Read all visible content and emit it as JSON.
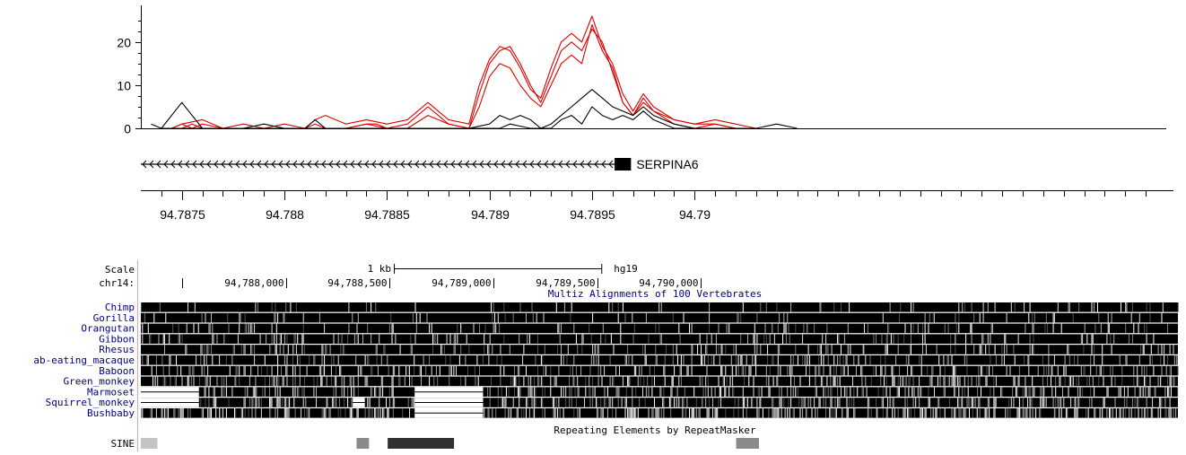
{
  "colors": {
    "upper_series": "#e00000",
    "lower_series": "#000000",
    "axis": "#000000",
    "gene": "#000000",
    "track_title": "#000080",
    "species_label": "#000080",
    "scale_label": "#000000",
    "track_divider": "#f4a0a0",
    "repeat_light": "#c4c4c4",
    "repeat_mid": "#8a8a8a",
    "repeat_dark": "#303030"
  },
  "chart_data": {
    "type": "line",
    "ylim": [
      0,
      26
    ],
    "yticks": [
      0,
      10,
      20
    ],
    "xlim": [
      94.7873,
      94.7923
    ],
    "xticks": [
      {
        "value": 94.7875,
        "label": "94.7875"
      },
      {
        "value": 94.788,
        "label": "94.788"
      },
      {
        "value": 94.7885,
        "label": "94.7885"
      },
      {
        "value": 94.789,
        "label": "94.789"
      },
      {
        "value": 94.7895,
        "label": "94.7895"
      },
      {
        "value": 94.79,
        "label": "94.79"
      }
    ],
    "series": [
      {
        "color": "#e00000",
        "points": [
          [
            94.78745,
            0
          ],
          [
            94.7875,
            1
          ],
          [
            94.78755,
            0
          ],
          [
            94.7876,
            1
          ],
          [
            94.7877,
            0
          ],
          [
            94.7878,
            0
          ],
          [
            94.7879,
            0
          ],
          [
            94.788,
            0
          ],
          [
            94.7881,
            0
          ],
          [
            94.78815,
            1
          ],
          [
            94.7882,
            0
          ],
          [
            94.7883,
            0
          ],
          [
            94.7884,
            1
          ],
          [
            94.78845,
            1
          ],
          [
            94.7885,
            0
          ],
          [
            94.7886,
            0
          ],
          [
            94.7887,
            3
          ],
          [
            94.78875,
            2
          ],
          [
            94.7888,
            1
          ],
          [
            94.7889,
            0
          ],
          [
            94.78895,
            5
          ],
          [
            94.789,
            12
          ],
          [
            94.78905,
            15
          ],
          [
            94.7891,
            14
          ],
          [
            94.78915,
            10
          ],
          [
            94.7892,
            7
          ],
          [
            94.78925,
            5
          ],
          [
            94.7893,
            10
          ],
          [
            94.78935,
            15
          ],
          [
            94.7894,
            17
          ],
          [
            94.78945,
            15
          ],
          [
            94.7895,
            24
          ],
          [
            94.78955,
            18
          ],
          [
            94.7896,
            14
          ],
          [
            94.78965,
            6
          ],
          [
            94.7897,
            3
          ],
          [
            94.78975,
            6
          ],
          [
            94.7898,
            4
          ],
          [
            94.7899,
            1
          ],
          [
            94.79,
            0
          ],
          [
            94.7901,
            1
          ],
          [
            94.7902,
            0
          ],
          [
            94.7903,
            0
          ]
        ]
      },
      {
        "color": "#e00000",
        "points": [
          [
            94.78745,
            0
          ],
          [
            94.7875,
            0
          ],
          [
            94.78755,
            1
          ],
          [
            94.7876,
            0
          ],
          [
            94.7877,
            0
          ],
          [
            94.7878,
            0
          ],
          [
            94.7879,
            0
          ],
          [
            94.788,
            0
          ],
          [
            94.7881,
            0
          ],
          [
            94.7882,
            0
          ],
          [
            94.7883,
            0
          ],
          [
            94.7884,
            1
          ],
          [
            94.7885,
            0
          ],
          [
            94.7886,
            1
          ],
          [
            94.7887,
            5
          ],
          [
            94.78875,
            3
          ],
          [
            94.7888,
            1
          ],
          [
            94.7889,
            0
          ],
          [
            94.78895,
            8
          ],
          [
            94.789,
            15
          ],
          [
            94.78905,
            18
          ],
          [
            94.7891,
            19
          ],
          [
            94.78915,
            15
          ],
          [
            94.7892,
            10
          ],
          [
            94.78925,
            6
          ],
          [
            94.7893,
            12
          ],
          [
            94.78935,
            18
          ],
          [
            94.7894,
            20
          ],
          [
            94.78945,
            18
          ],
          [
            94.7895,
            23
          ],
          [
            94.78955,
            20
          ],
          [
            94.7896,
            13
          ],
          [
            94.78965,
            6
          ],
          [
            94.7897,
            3
          ],
          [
            94.78975,
            7
          ],
          [
            94.7898,
            4
          ],
          [
            94.7899,
            2
          ],
          [
            94.79,
            1
          ],
          [
            94.7901,
            1
          ],
          [
            94.7902,
            0
          ],
          [
            94.7903,
            0
          ]
        ]
      },
      {
        "color": "#e00000",
        "points": [
          [
            94.78745,
            0
          ],
          [
            94.7875,
            1
          ],
          [
            94.7876,
            2
          ],
          [
            94.7877,
            0
          ],
          [
            94.7878,
            1
          ],
          [
            94.7879,
            0
          ],
          [
            94.788,
            1
          ],
          [
            94.7881,
            0
          ],
          [
            94.78815,
            2
          ],
          [
            94.7882,
            3
          ],
          [
            94.7883,
            1
          ],
          [
            94.7884,
            2
          ],
          [
            94.7885,
            1
          ],
          [
            94.7886,
            2
          ],
          [
            94.7887,
            6
          ],
          [
            94.78875,
            4
          ],
          [
            94.7888,
            2
          ],
          [
            94.7889,
            1
          ],
          [
            94.78895,
            10
          ],
          [
            94.789,
            16
          ],
          [
            94.78905,
            19
          ],
          [
            94.7891,
            18
          ],
          [
            94.78915,
            14
          ],
          [
            94.7892,
            9
          ],
          [
            94.78925,
            7
          ],
          [
            94.7893,
            14
          ],
          [
            94.78935,
            20
          ],
          [
            94.7894,
            22
          ],
          [
            94.78945,
            20
          ],
          [
            94.7895,
            26
          ],
          [
            94.78955,
            19
          ],
          [
            94.7896,
            15
          ],
          [
            94.78965,
            8
          ],
          [
            94.7897,
            4
          ],
          [
            94.78975,
            8
          ],
          [
            94.7898,
            5
          ],
          [
            94.7899,
            2
          ],
          [
            94.79,
            1
          ],
          [
            94.7901,
            2
          ],
          [
            94.7902,
            1
          ],
          [
            94.7903,
            0
          ]
        ]
      },
      {
        "color": "#000000",
        "points": [
          [
            94.78735,
            1
          ],
          [
            94.7874,
            0
          ],
          [
            94.7875,
            6
          ],
          [
            94.7876,
            0
          ],
          [
            94.7877,
            0
          ],
          [
            94.7878,
            0
          ],
          [
            94.7879,
            1
          ],
          [
            94.788,
            0
          ],
          [
            94.7881,
            0
          ],
          [
            94.78815,
            2
          ],
          [
            94.7882,
            0
          ],
          [
            94.7883,
            0
          ],
          [
            94.7884,
            0
          ],
          [
            94.7885,
            0
          ],
          [
            94.7886,
            0
          ],
          [
            94.7887,
            0
          ],
          [
            94.7888,
            0
          ],
          [
            94.7889,
            0
          ],
          [
            94.789,
            1
          ],
          [
            94.78905,
            3
          ],
          [
            94.7891,
            2
          ],
          [
            94.78915,
            3
          ],
          [
            94.7892,
            2
          ],
          [
            94.78925,
            0
          ],
          [
            94.7893,
            1
          ],
          [
            94.78935,
            3
          ],
          [
            94.7894,
            5
          ],
          [
            94.78945,
            7
          ],
          [
            94.7895,
            9
          ],
          [
            94.78955,
            7
          ],
          [
            94.7896,
            5
          ],
          [
            94.78965,
            4
          ],
          [
            94.7897,
            3
          ],
          [
            94.78975,
            5
          ],
          [
            94.7898,
            3
          ],
          [
            94.7899,
            1
          ],
          [
            94.79,
            0
          ],
          [
            94.7901,
            0
          ],
          [
            94.7902,
            0
          ],
          [
            94.7903,
            0
          ],
          [
            94.7904,
            1
          ],
          [
            94.7905,
            0
          ]
        ]
      },
      {
        "color": "#000000",
        "points": [
          [
            94.7874,
            0
          ],
          [
            94.7876,
            0
          ],
          [
            94.7878,
            0
          ],
          [
            94.788,
            0
          ],
          [
            94.7882,
            0
          ],
          [
            94.7884,
            0
          ],
          [
            94.7886,
            0
          ],
          [
            94.7888,
            0
          ],
          [
            94.7889,
            0
          ],
          [
            94.78905,
            0
          ],
          [
            94.7891,
            1
          ],
          [
            94.7892,
            0
          ],
          [
            94.7893,
            0
          ],
          [
            94.78935,
            2
          ],
          [
            94.7894,
            3
          ],
          [
            94.78945,
            1
          ],
          [
            94.7895,
            5
          ],
          [
            94.78955,
            3
          ],
          [
            94.7896,
            2
          ],
          [
            94.78965,
            3
          ],
          [
            94.7897,
            2
          ],
          [
            94.78975,
            4
          ],
          [
            94.7898,
            2
          ],
          [
            94.7899,
            0
          ],
          [
            94.79,
            0
          ],
          [
            94.7902,
            0
          ]
        ]
      }
    ]
  },
  "gene": {
    "name": "SERPINA6",
    "start": 94.7873,
    "end": 94.78965,
    "exon_start": 94.78961,
    "exon_end": 94.78969
  },
  "browser": {
    "scale_label": "Scale",
    "chrom_label": "chr14:",
    "scale_bar_label": "1 kb",
    "assembly": "hg19",
    "scale_bar_start": 94.78852,
    "scale_bar_end": 94.78952,
    "coord_ticks": [
      {
        "value": 94.7875,
        "label": ""
      },
      {
        "value": 94.788,
        "label": "94,788,000"
      },
      {
        "value": 94.7885,
        "label": "94,788,500"
      },
      {
        "value": 94.789,
        "label": "94,789,000"
      },
      {
        "value": 94.7895,
        "label": "94,789,500"
      },
      {
        "value": 94.79,
        "label": "94,790,000"
      }
    ],
    "alignment_title": "Multiz Alignments of 100 Vertebrates",
    "repeat_title": "Repeating Elements by RepeatMasker",
    "species": [
      {
        "name": "Chimp",
        "gaps": []
      },
      {
        "name": "Gorilla",
        "gaps": []
      },
      {
        "name": "Orangutan",
        "gaps": []
      },
      {
        "name": "Gibbon",
        "gaps": []
      },
      {
        "name": "Rhesus",
        "gaps": []
      },
      {
        "name": "ab-eating_macaque",
        "gaps": []
      },
      {
        "name": "Baboon",
        "gaps": []
      },
      {
        "name": "Green_monkey",
        "gaps": []
      },
      {
        "name": "Marmoset",
        "gaps": [
          [
            94.7873,
            94.78758
          ],
          [
            94.78862,
            94.78895
          ]
        ]
      },
      {
        "name": "Squirrel_monkey",
        "gaps": [
          [
            94.7873,
            94.78758
          ],
          [
            94.78832,
            94.78838
          ],
          [
            94.78862,
            94.78895
          ]
        ]
      },
      {
        "name": "Bushbaby",
        "gaps": [
          [
            94.78862,
            94.78895
          ]
        ]
      }
    ],
    "repeats": [
      {
        "name": "SINE",
        "blocks": [
          {
            "start": 94.7873,
            "end": 94.78738,
            "shade": "#c4c4c4"
          },
          {
            "start": 94.78834,
            "end": 94.7884,
            "shade": "#8a8a8a"
          },
          {
            "start": 94.78849,
            "end": 94.78881,
            "shade": "#303030"
          },
          {
            "start": 94.79017,
            "end": 94.79028,
            "shade": "#8a8a8a"
          }
        ]
      }
    ]
  }
}
